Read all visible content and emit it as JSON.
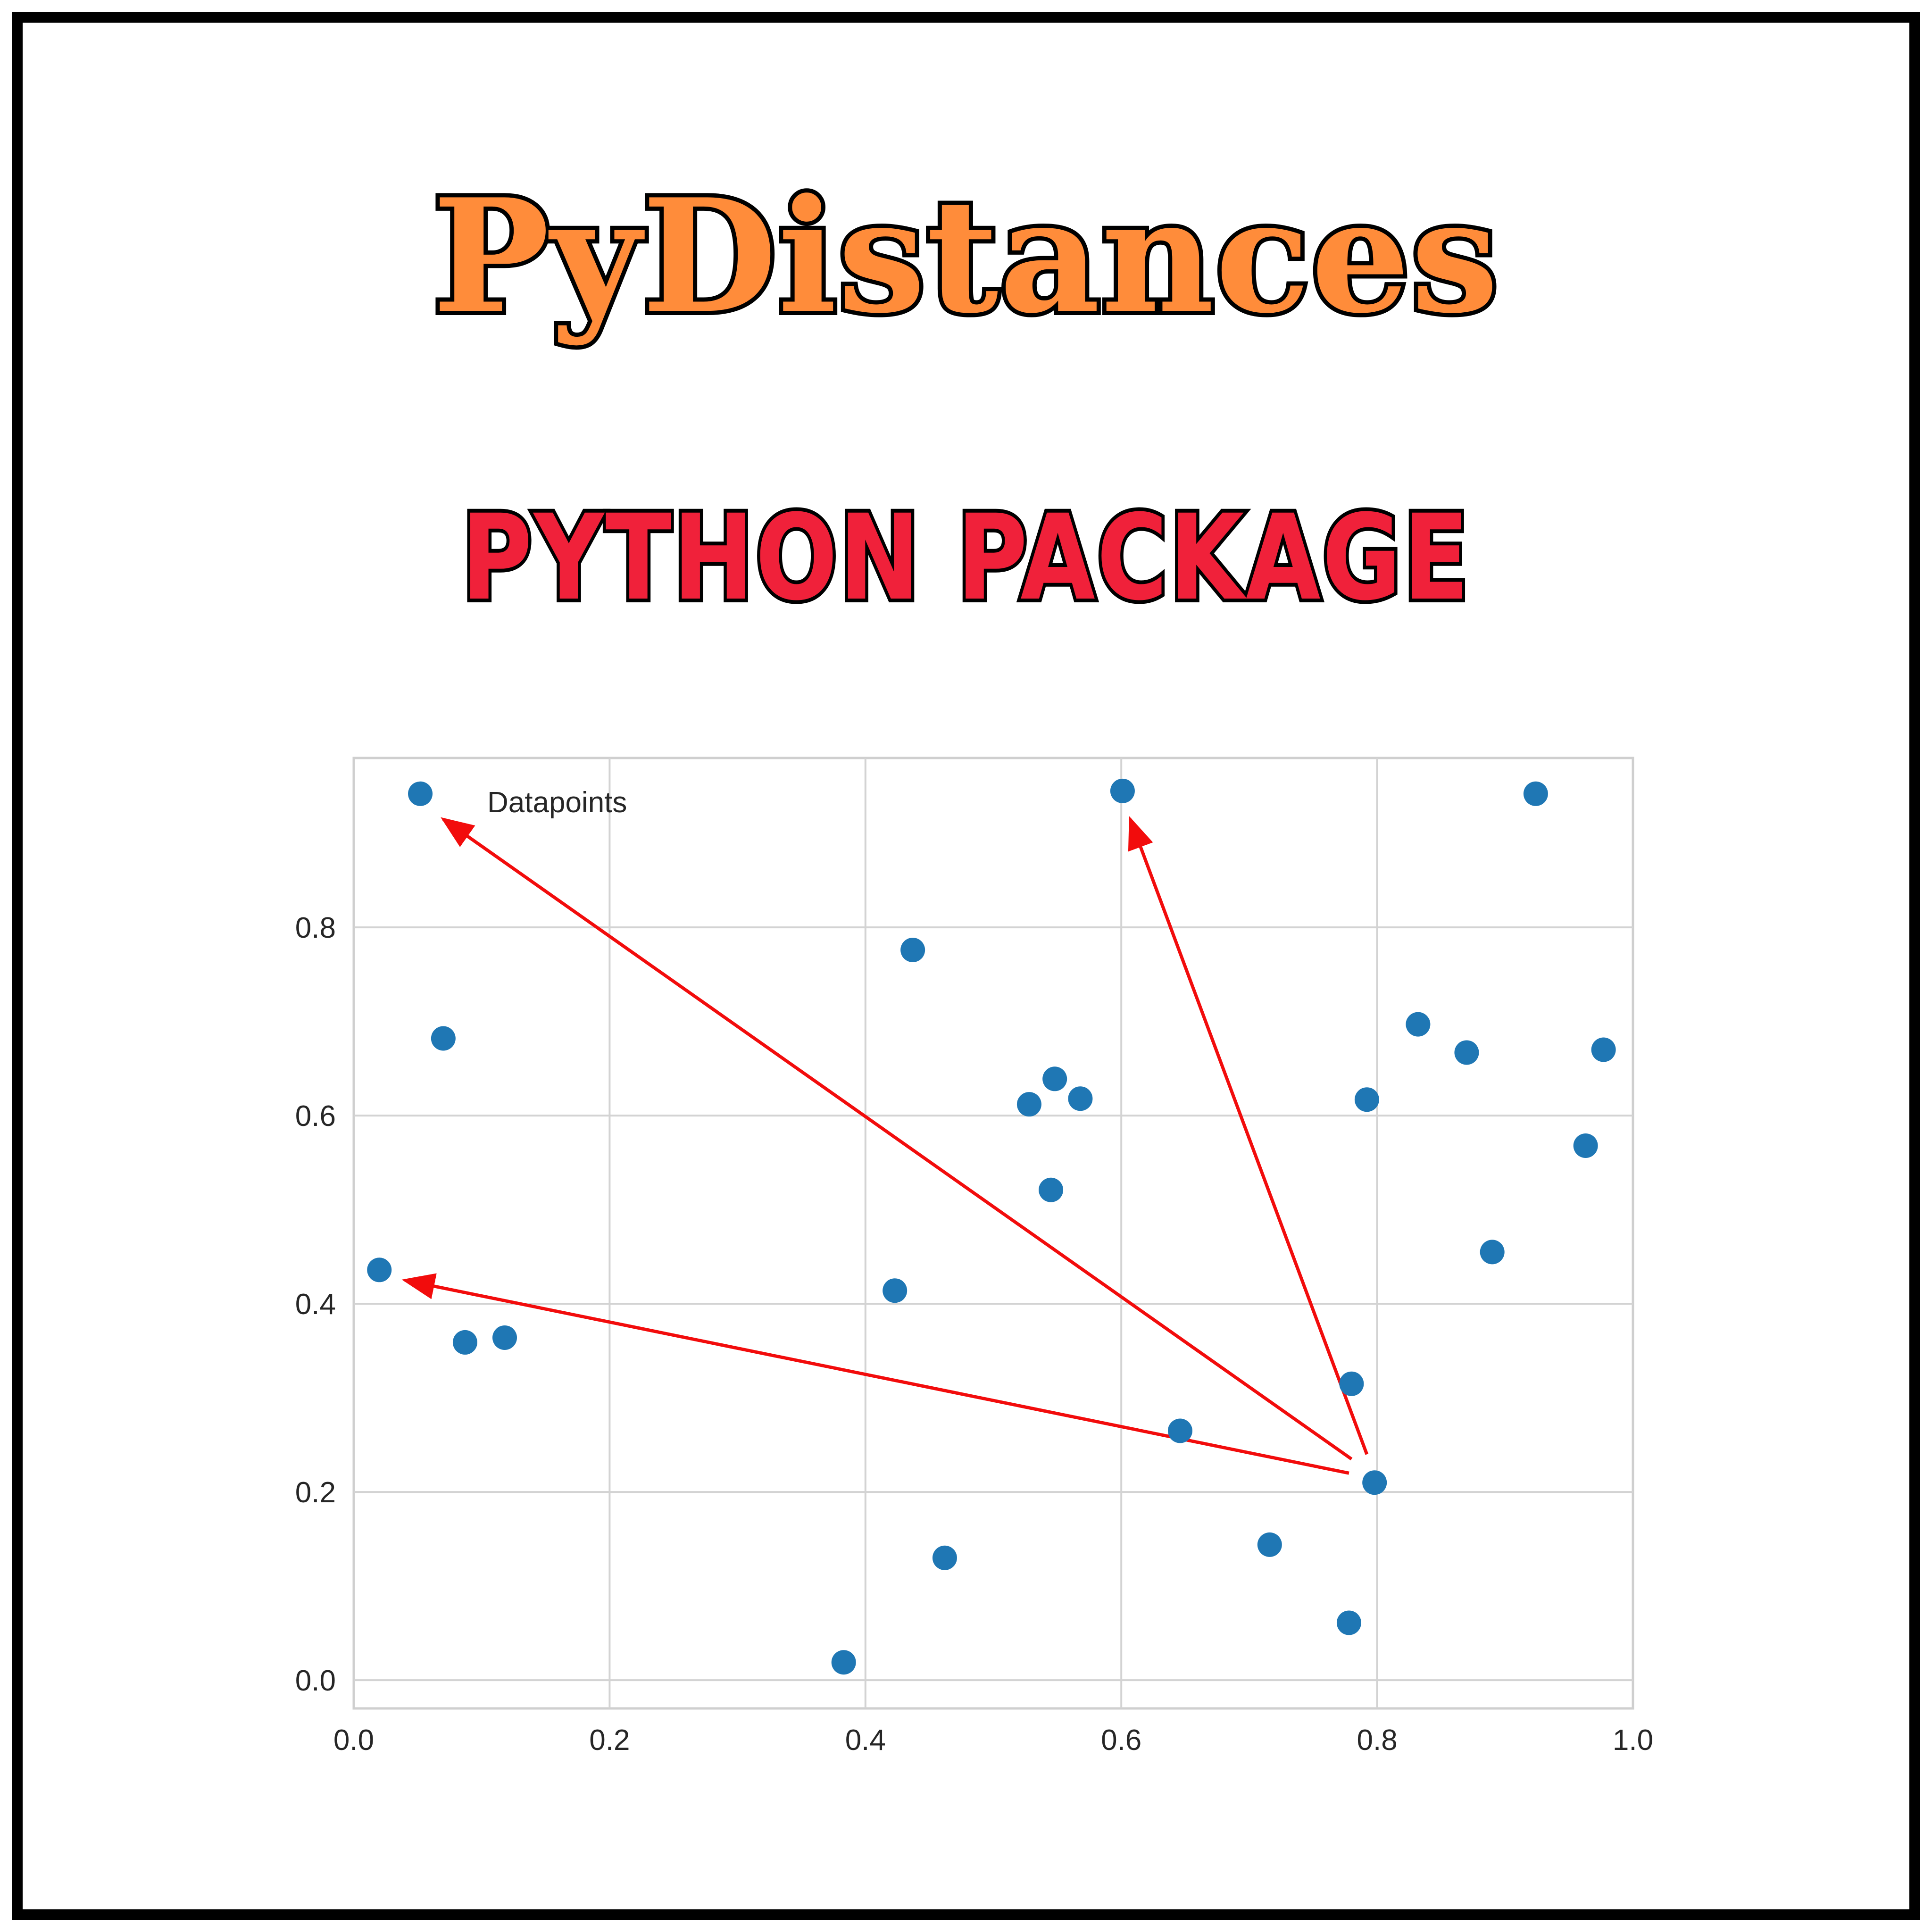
{
  "title": "PyDistances",
  "subtitle": "PYTHON PACKAGE",
  "colors": {
    "title_fill": "#FF8C3A",
    "subtitle_fill": "#F0213A",
    "outline": "#000000",
    "point": "#1F77B4",
    "arrow": "#F20C0C",
    "grid": "#D3D3D3"
  },
  "chart_data": {
    "type": "scatter",
    "title": "",
    "xlabel": "",
    "ylabel": "",
    "xlim": [
      0.0,
      1.0
    ],
    "ylim": [
      -0.03,
      0.98
    ],
    "xticks": [
      "0.0",
      "0.2",
      "0.4",
      "0.6",
      "0.8",
      "1.0"
    ],
    "yticks": [
      "0.0",
      "0.2",
      "0.4",
      "0.6",
      "0.8"
    ],
    "grid": true,
    "legend": {
      "placement": "top-left",
      "entries": [
        "Datapoints"
      ]
    },
    "series": [
      {
        "name": "Datapoints",
        "x": [
          0.052,
          0.07,
          0.02,
          0.087,
          0.118,
          0.383,
          0.423,
          0.437,
          0.462,
          0.528,
          0.548,
          0.568,
          0.545,
          0.601,
          0.646,
          0.716,
          0.778,
          0.78,
          0.792,
          0.798,
          0.832,
          0.87,
          0.89,
          0.924,
          0.963,
          0.977
        ],
        "y": [
          0.942,
          0.682,
          0.436,
          0.359,
          0.364,
          0.019,
          0.414,
          0.776,
          0.13,
          0.612,
          0.639,
          0.618,
          0.521,
          0.945,
          0.265,
          0.144,
          0.061,
          0.315,
          0.617,
          0.21,
          0.697,
          0.667,
          0.455,
          0.942,
          0.568,
          0.67
        ]
      }
    ],
    "annotations": [
      {
        "type": "arrow",
        "from": [
          0.78,
          0.235
        ],
        "to": [
          0.07,
          0.915
        ]
      },
      {
        "type": "arrow",
        "from": [
          0.792,
          0.24
        ],
        "to": [
          0.607,
          0.915
        ]
      },
      {
        "type": "arrow",
        "from": [
          0.778,
          0.22
        ],
        "to": [
          0.04,
          0.425
        ]
      }
    ]
  }
}
